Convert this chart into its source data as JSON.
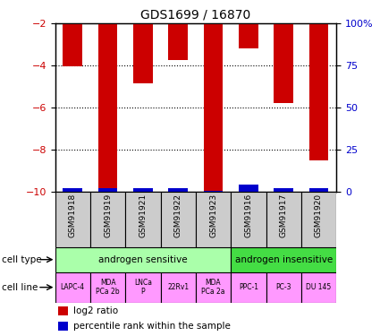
{
  "title": "GDS1699 / 16870",
  "samples": [
    "GSM91918",
    "GSM91919",
    "GSM91921",
    "GSM91922",
    "GSM91923",
    "GSM91916",
    "GSM91917",
    "GSM91920"
  ],
  "log2_ratio": [
    -4.05,
    -10.0,
    -4.85,
    -3.75,
    -10.0,
    -3.2,
    -5.8,
    -8.5
  ],
  "percentile_rank": [
    2.0,
    2.0,
    2.0,
    2.0,
    0.5,
    4.0,
    2.0,
    2.0
  ],
  "bar_color": "#cc0000",
  "pct_color": "#0000cc",
  "ymin": -10,
  "ymax": -2,
  "yticks_left": [
    -10,
    -8,
    -6,
    -4,
    -2
  ],
  "yticks_right": [
    0,
    25,
    50,
    75,
    100
  ],
  "ytick_labels_right": [
    "0",
    "25",
    "50",
    "75",
    "100%"
  ],
  "cell_type_groups": [
    {
      "label": "androgen sensitive",
      "start": 0,
      "end": 5,
      "color": "#aaffaa"
    },
    {
      "label": "androgen insensitive",
      "start": 5,
      "end": 8,
      "color": "#44dd44"
    }
  ],
  "cell_lines": [
    "LAPC-4",
    "MDA\nPCa 2b",
    "LNCa\nP",
    "22Rv1",
    "MDA\nPCa 2a",
    "PPC-1",
    "PC-3",
    "DU 145"
  ],
  "cell_line_color": "#ff99ff",
  "sample_bg_color": "#cccccc",
  "background_color": "#ffffff",
  "left_label_color": "#cc0000",
  "right_label_color": "#0000cc",
  "legend_red_label": "log2 ratio",
  "legend_blue_label": "percentile rank within the sample"
}
